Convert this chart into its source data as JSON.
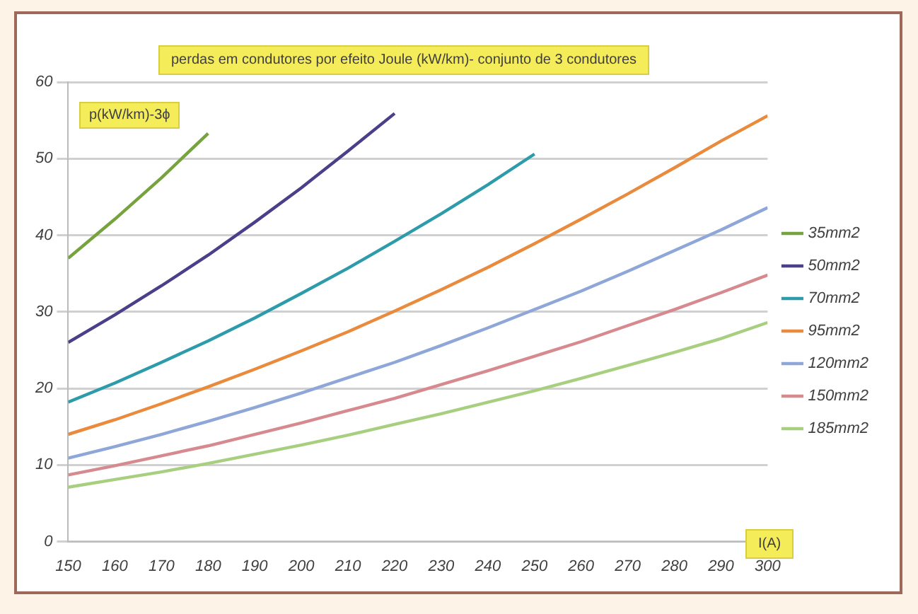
{
  "chart_data": {
    "type": "line",
    "title": "perdas em condutores por efeito Joule (kW/km)- conjunto de 3 condutores",
    "ylabel": "p(kW/km)-3ϕ",
    "xlabel": "I(A)",
    "xlim": [
      150,
      300
    ],
    "xticks": [
      150,
      160,
      170,
      180,
      190,
      200,
      210,
      220,
      230,
      240,
      250,
      260,
      270,
      280,
      290,
      300
    ],
    "ylim": [
      0,
      60
    ],
    "yticks": [
      0,
      10,
      20,
      30,
      40,
      50,
      60
    ],
    "grid": "y",
    "legend": "right",
    "marker": "none",
    "line_style": "solid",
    "series": [
      {
        "name": "35mm2",
        "color": "#77a33f",
        "x": [
          150,
          160,
          170,
          180
        ],
        "values": [
          37,
          42.1,
          47.5,
          53.3
        ]
      },
      {
        "name": "50mm2",
        "color": "#4b3f8a",
        "x": [
          150,
          160,
          170,
          180,
          190,
          200,
          210,
          220
        ],
        "values": [
          26,
          29.6,
          33.4,
          37.4,
          41.7,
          46.2,
          51.0,
          55.9
        ]
      },
      {
        "name": "70mm2",
        "color": "#2e9bab",
        "x": [
          150,
          160,
          170,
          180,
          190,
          200,
          210,
          220,
          230,
          240,
          250
        ],
        "values": [
          18.2,
          20.7,
          23.4,
          26.2,
          29.2,
          32.4,
          35.7,
          39.2,
          42.8,
          46.6,
          50.6
        ]
      },
      {
        "name": "95mm2",
        "color": "#e98a3c",
        "x": [
          150,
          160,
          170,
          180,
          190,
          200,
          210,
          220,
          230,
          240,
          250,
          260,
          270,
          280,
          290,
          300
        ],
        "values": [
          14,
          15.9,
          18.0,
          20.2,
          22.5,
          24.9,
          27.4,
          30.1,
          32.9,
          35.8,
          38.9,
          42.1,
          45.4,
          48.8,
          52.3,
          55.6
        ]
      },
      {
        "name": "120mm2",
        "color": "#8ea6d8",
        "x": [
          150,
          160,
          170,
          180,
          190,
          200,
          210,
          220,
          230,
          240,
          250,
          260,
          270,
          280,
          290,
          300
        ],
        "values": [
          10.9,
          12.4,
          14.0,
          15.7,
          17.5,
          19.4,
          21.4,
          23.4,
          25.6,
          27.9,
          30.3,
          32.7,
          35.3,
          38.0,
          40.7,
          43.6
        ]
      },
      {
        "name": "150mm2",
        "color": "#d68a90",
        "x": [
          150,
          160,
          170,
          180,
          190,
          200,
          210,
          220,
          230,
          240,
          250,
          260,
          270,
          280,
          290,
          300
        ],
        "values": [
          8.7,
          9.9,
          11.2,
          12.5,
          14.0,
          15.5,
          17.1,
          18.7,
          20.5,
          22.3,
          24.2,
          26.1,
          28.2,
          30.3,
          32.5,
          34.8
        ]
      },
      {
        "name": "185mm2",
        "color": "#a8cf80",
        "x": [
          150,
          160,
          170,
          180,
          190,
          200,
          210,
          220,
          230,
          240,
          250,
          260,
          270,
          280,
          290,
          300
        ],
        "values": [
          7.1,
          8.1,
          9.1,
          10.2,
          11.4,
          12.6,
          13.9,
          15.3,
          16.7,
          18.2,
          19.7,
          21.3,
          23.0,
          24.7,
          26.5,
          28.6
        ]
      }
    ]
  }
}
